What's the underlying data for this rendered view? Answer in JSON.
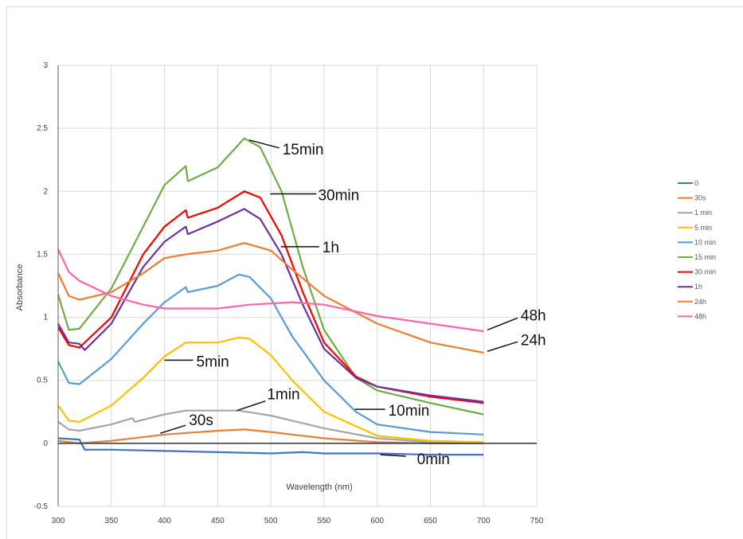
{
  "chart_data": {
    "type": "line",
    "title": "",
    "xlabel": "Wavelength (nm)",
    "ylabel": "Absorbance",
    "xlim": [
      300,
      750
    ],
    "ylim": [
      -0.5,
      3
    ],
    "x_ticks": [
      "300",
      "350",
      "400",
      "450",
      "500",
      "550",
      "600",
      "650",
      "700",
      "750"
    ],
    "y_ticks": [
      "-0.5",
      "0",
      "0.5",
      "1",
      "1.5",
      "2",
      "2.5",
      "3"
    ],
    "grid": true,
    "legend_position": "right",
    "series": [
      {
        "name": "0",
        "color": "#4472c4",
        "points": [
          [
            300,
            0.04
          ],
          [
            320,
            0.03
          ],
          [
            325,
            -0.05
          ],
          [
            350,
            -0.05
          ],
          [
            400,
            -0.06
          ],
          [
            450,
            -0.07
          ],
          [
            500,
            -0.08
          ],
          [
            530,
            -0.07
          ],
          [
            550,
            -0.08
          ],
          [
            600,
            -0.08
          ],
          [
            650,
            -0.09
          ],
          [
            700,
            -0.09
          ]
        ]
      },
      {
        "name": "30s",
        "color": "#ed7d31",
        "points": [
          [
            300,
            0.02
          ],
          [
            320,
            0.0
          ],
          [
            350,
            0.02
          ],
          [
            400,
            0.07
          ],
          [
            450,
            0.1
          ],
          [
            475,
            0.11
          ],
          [
            500,
            0.09
          ],
          [
            550,
            0.04
          ],
          [
            600,
            0.01
          ],
          [
            650,
            0.0
          ],
          [
            700,
            0.0
          ]
        ]
      },
      {
        "name": "1 min",
        "color": "#a5a5a5",
        "points": [
          [
            300,
            0.17
          ],
          [
            310,
            0.11
          ],
          [
            320,
            0.1
          ],
          [
            350,
            0.15
          ],
          [
            370,
            0.2
          ],
          [
            372,
            0.17
          ],
          [
            400,
            0.23
          ],
          [
            420,
            0.26
          ],
          [
            450,
            0.26
          ],
          [
            470,
            0.26
          ],
          [
            500,
            0.22
          ],
          [
            550,
            0.12
          ],
          [
            600,
            0.04
          ],
          [
            650,
            0.01
          ],
          [
            700,
            0.01
          ]
        ]
      },
      {
        "name": "5 min",
        "color": "#ffc000",
        "points": [
          [
            300,
            0.3
          ],
          [
            310,
            0.18
          ],
          [
            320,
            0.17
          ],
          [
            350,
            0.3
          ],
          [
            380,
            0.52
          ],
          [
            400,
            0.69
          ],
          [
            420,
            0.8
          ],
          [
            450,
            0.8
          ],
          [
            470,
            0.84
          ],
          [
            480,
            0.83
          ],
          [
            500,
            0.7
          ],
          [
            520,
            0.5
          ],
          [
            550,
            0.25
          ],
          [
            600,
            0.06
          ],
          [
            650,
            0.02
          ],
          [
            700,
            0.01
          ]
        ]
      },
      {
        "name": "10 min",
        "color": "#5b9bd5",
        "points": [
          [
            300,
            0.65
          ],
          [
            310,
            0.48
          ],
          [
            320,
            0.47
          ],
          [
            350,
            0.67
          ],
          [
            380,
            0.95
          ],
          [
            400,
            1.12
          ],
          [
            420,
            1.24
          ],
          [
            422,
            1.2
          ],
          [
            450,
            1.25
          ],
          [
            470,
            1.34
          ],
          [
            480,
            1.32
          ],
          [
            500,
            1.15
          ],
          [
            520,
            0.85
          ],
          [
            550,
            0.5
          ],
          [
            580,
            0.25
          ],
          [
            600,
            0.15
          ],
          [
            650,
            0.09
          ],
          [
            700,
            0.07
          ]
        ]
      },
      {
        "name": "15 min",
        "color": "#70ad47",
        "points": [
          [
            300,
            1.18
          ],
          [
            310,
            0.9
          ],
          [
            320,
            0.91
          ],
          [
            350,
            1.23
          ],
          [
            380,
            1.72
          ],
          [
            400,
            2.05
          ],
          [
            420,
            2.2
          ],
          [
            422,
            2.08
          ],
          [
            450,
            2.19
          ],
          [
            475,
            2.42
          ],
          [
            490,
            2.35
          ],
          [
            510,
            2.0
          ],
          [
            530,
            1.4
          ],
          [
            550,
            0.9
          ],
          [
            580,
            0.52
          ],
          [
            600,
            0.42
          ],
          [
            650,
            0.32
          ],
          [
            700,
            0.23
          ]
        ]
      },
      {
        "name": "30 min",
        "color": "#ff0000",
        "points": [
          [
            300,
            0.92
          ],
          [
            310,
            0.78
          ],
          [
            320,
            0.76
          ],
          [
            350,
            1.0
          ],
          [
            380,
            1.5
          ],
          [
            400,
            1.72
          ],
          [
            420,
            1.85
          ],
          [
            422,
            1.79
          ],
          [
            450,
            1.87
          ],
          [
            475,
            2.0
          ],
          [
            490,
            1.95
          ],
          [
            510,
            1.65
          ],
          [
            530,
            1.2
          ],
          [
            550,
            0.8
          ],
          [
            580,
            0.53
          ],
          [
            600,
            0.45
          ],
          [
            650,
            0.37
          ],
          [
            700,
            0.32
          ]
        ]
      },
      {
        "name": "1h",
        "color": "#7030a0",
        "points": [
          [
            300,
            0.95
          ],
          [
            310,
            0.8
          ],
          [
            320,
            0.79
          ],
          [
            325,
            0.74
          ],
          [
            350,
            0.95
          ],
          [
            380,
            1.4
          ],
          [
            400,
            1.6
          ],
          [
            420,
            1.72
          ],
          [
            422,
            1.66
          ],
          [
            450,
            1.76
          ],
          [
            475,
            1.86
          ],
          [
            490,
            1.78
          ],
          [
            510,
            1.5
          ],
          [
            530,
            1.1
          ],
          [
            550,
            0.75
          ],
          [
            580,
            0.52
          ],
          [
            600,
            0.45
          ],
          [
            650,
            0.38
          ],
          [
            700,
            0.33
          ]
        ]
      },
      {
        "name": "24h",
        "color": "#ed7d31",
        "points": [
          [
            300,
            1.35
          ],
          [
            310,
            1.17
          ],
          [
            320,
            1.14
          ],
          [
            350,
            1.2
          ],
          [
            380,
            1.35
          ],
          [
            400,
            1.47
          ],
          [
            420,
            1.5
          ],
          [
            450,
            1.53
          ],
          [
            475,
            1.59
          ],
          [
            500,
            1.53
          ],
          [
            520,
            1.38
          ],
          [
            550,
            1.17
          ],
          [
            600,
            0.95
          ],
          [
            650,
            0.8
          ],
          [
            700,
            0.72
          ]
        ]
      },
      {
        "name": "48h",
        "color": "#ff66aa",
        "points": [
          [
            300,
            1.54
          ],
          [
            310,
            1.36
          ],
          [
            320,
            1.29
          ],
          [
            350,
            1.17
          ],
          [
            380,
            1.1
          ],
          [
            400,
            1.07
          ],
          [
            450,
            1.07
          ],
          [
            480,
            1.1
          ],
          [
            520,
            1.12
          ],
          [
            550,
            1.1
          ],
          [
            600,
            1.01
          ],
          [
            650,
            0.95
          ],
          [
            700,
            0.89
          ]
        ]
      }
    ],
    "annotations": [
      {
        "text": "15min",
        "at": [
          478,
          2.42
        ]
      },
      {
        "text": "30min",
        "at": [
          498,
          1.98
        ]
      },
      {
        "text": "1h",
        "at": [
          508,
          1.56
        ]
      },
      {
        "text": "48h",
        "at": [
          702,
          0.9
        ]
      },
      {
        "text": "24h",
        "at": [
          702,
          0.73
        ]
      },
      {
        "text": "5min",
        "at": [
          400,
          0.66
        ]
      },
      {
        "text": "1min",
        "at": [
          468,
          0.26
        ]
      },
      {
        "text": "10min",
        "at": [
          579,
          0.27
        ]
      },
      {
        "text": "30s",
        "at": [
          396,
          0.08
        ]
      },
      {
        "text": "0min",
        "at": [
          603,
          -0.09
        ]
      }
    ]
  }
}
